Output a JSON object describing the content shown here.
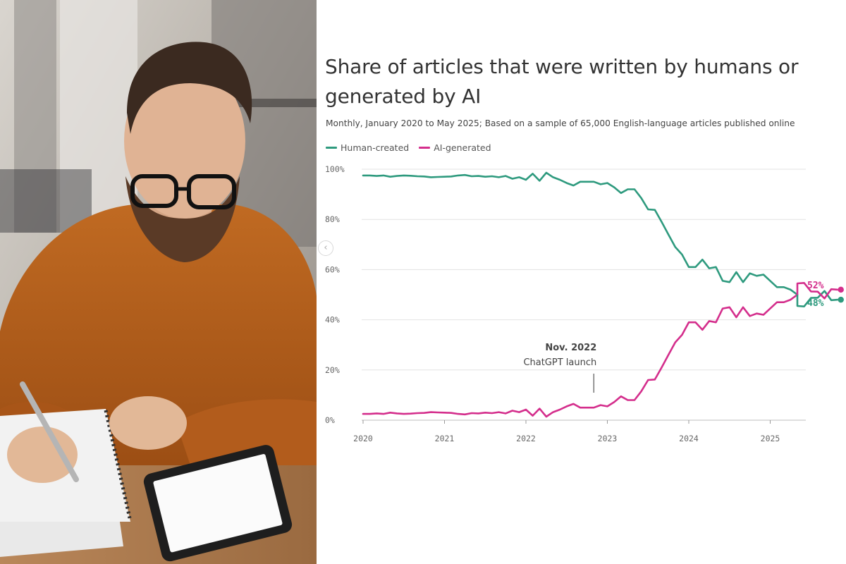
{
  "chart_data": {
    "type": "line",
    "title": "Share of articles that were written by humans or generated by AI",
    "subtitle": "Monthly, January 2020 to May 2025; Based on a sample of 65,000 English-language articles published online",
    "xlabel": "",
    "ylabel": "",
    "x_start": "2020-01",
    "x_end": "2025-05",
    "x_ticks": [
      "2020",
      "2021",
      "2022",
      "2023",
      "2024",
      "2025"
    ],
    "y_ticks": [
      "0%",
      "20%",
      "40%",
      "60%",
      "80%",
      "100%"
    ],
    "ylim": [
      0,
      100
    ],
    "grid": true,
    "legend_position": "top-left",
    "series": [
      {
        "name": "Human-created",
        "color": "#2e9a7e",
        "end_label": "48%",
        "values": [
          97.5,
          97.5,
          97.3,
          97.5,
          97,
          97.3,
          97.5,
          97.4,
          97.2,
          97.1,
          96.8,
          96.9,
          97,
          97.1,
          97.5,
          97.7,
          97.2,
          97.3,
          97,
          97.2,
          96.8,
          97.3,
          96.2,
          96.8,
          95.8,
          98.2,
          95.4,
          98.6,
          96.8,
          95.8,
          94.5,
          93.5,
          95,
          95,
          95,
          94,
          94.5,
          92.8,
          90.5,
          92,
          92,
          88.5,
          84,
          83.8,
          79,
          74,
          69,
          66,
          61,
          61,
          64,
          60.5,
          61,
          55.5,
          55,
          59,
          55,
          58.5,
          57.5,
          58,
          55.5,
          53,
          53,
          52,
          50
        ]
      },
      {
        "name": "AI-generated",
        "color": "#d42e8c",
        "end_label": "52%",
        "values": [
          2.5,
          2.5,
          2.7,
          2.5,
          3,
          2.7,
          2.5,
          2.6,
          2.8,
          2.9,
          3.2,
          3.1,
          3,
          2.9,
          2.5,
          2.3,
          2.8,
          2.7,
          3,
          2.8,
          3.2,
          2.7,
          3.8,
          3.2,
          4.2,
          1.8,
          4.6,
          1.4,
          3.2,
          4.2,
          5.5,
          6.5,
          5,
          5,
          5,
          6,
          5.5,
          7.2,
          9.5,
          8,
          8,
          11.5,
          16,
          16.2,
          21,
          26,
          31,
          34,
          39,
          39,
          36,
          39.5,
          39,
          44.5,
          45,
          41,
          45,
          41.5,
          42.5,
          42,
          44.5,
          47,
          47,
          48,
          50
        ]
      }
    ],
    "tail_points": {
      "human": [
        45.5,
        45.3,
        48.7,
        48.8,
        51.5,
        47.8,
        48
      ],
      "ai": [
        54.5,
        54.7,
        51.3,
        51.2,
        48.5,
        52.2,
        52
      ]
    },
    "annotations": [
      {
        "x": "2022-11",
        "line1": "Nov. 2022",
        "line2": "ChatGPT launch"
      }
    ]
  },
  "photo": {
    "description_icon": "person-writing-photo"
  },
  "ui": {
    "prev_arrow": "‹"
  }
}
